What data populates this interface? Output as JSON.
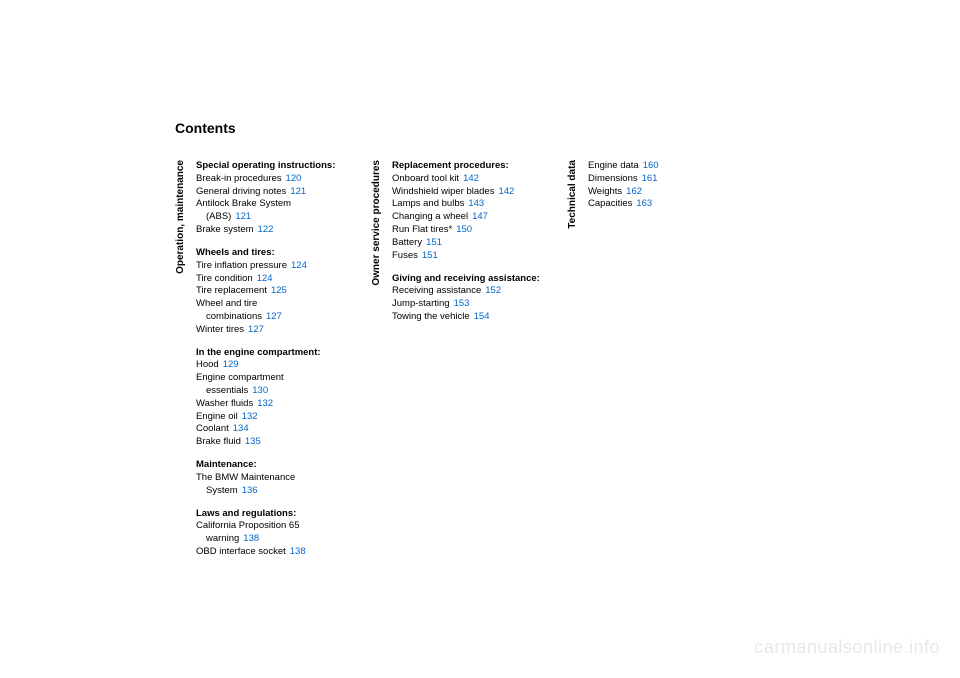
{
  "title": "Contents",
  "watermark": "carmanualsonline.info",
  "columns": [
    {
      "label": "Operation, maintenance",
      "sections": [
        {
          "title": "Special operating instructions:",
          "entries": [
            {
              "text": "Break-in procedures",
              "page": "120"
            },
            {
              "text": "General driving notes",
              "page": "121"
            },
            {
              "text": "Antilock Brake System",
              "cont": "(ABS)",
              "page": "121"
            },
            {
              "text": "Brake system",
              "page": "122"
            }
          ]
        },
        {
          "title": "Wheels and tires:",
          "entries": [
            {
              "text": "Tire inflation pressure",
              "page": "124"
            },
            {
              "text": "Tire condition",
              "page": "124"
            },
            {
              "text": "Tire replacement",
              "page": "125"
            },
            {
              "text": "Wheel and tire",
              "cont": "combinations",
              "page": "127"
            },
            {
              "text": "Winter tires",
              "page": "127"
            }
          ]
        },
        {
          "title": "In the engine compartment:",
          "entries": [
            {
              "text": "Hood",
              "page": "129"
            },
            {
              "text": "Engine compartment",
              "cont": "essentials",
              "page": "130"
            },
            {
              "text": "Washer fluids",
              "page": "132"
            },
            {
              "text": "Engine oil",
              "page": "132"
            },
            {
              "text": "Coolant",
              "page": "134"
            },
            {
              "text": "Brake fluid",
              "page": "135"
            }
          ]
        },
        {
          "title": "Maintenance:",
          "entries": [
            {
              "text": "The BMW Maintenance",
              "cont": "System",
              "page": "136"
            }
          ]
        },
        {
          "title": "Laws and regulations:",
          "entries": [
            {
              "text": "California Proposition 65",
              "cont": "warning",
              "page": "138"
            },
            {
              "text": "OBD interface socket",
              "page": "138"
            }
          ]
        }
      ]
    },
    {
      "label": "Owner service procedures",
      "sections": [
        {
          "title": "Replacement procedures:",
          "entries": [
            {
              "text": "Onboard tool kit",
              "page": "142"
            },
            {
              "text": "Windshield wiper blades",
              "page": "142"
            },
            {
              "text": "Lamps and bulbs",
              "page": "143"
            },
            {
              "text": "Changing a wheel",
              "page": "147"
            },
            {
              "text": "Run Flat tires*",
              "page": "150"
            },
            {
              "text": "Battery",
              "page": "151"
            },
            {
              "text": "Fuses",
              "page": "151"
            }
          ]
        },
        {
          "title": "Giving and receiving assistance:",
          "entries": [
            {
              "text": "Receiving assistance",
              "page": "152"
            },
            {
              "text": "Jump-starting",
              "page": "153"
            },
            {
              "text": "Towing the vehicle",
              "page": "154"
            }
          ]
        }
      ]
    },
    {
      "label": "Technical data",
      "sections": [
        {
          "title": "",
          "entries": [
            {
              "text": "Engine data",
              "page": "160"
            },
            {
              "text": "Dimensions",
              "page": "161"
            },
            {
              "text": "Weights",
              "page": "162"
            },
            {
              "text": "Capacities",
              "page": "163"
            }
          ]
        }
      ]
    }
  ]
}
